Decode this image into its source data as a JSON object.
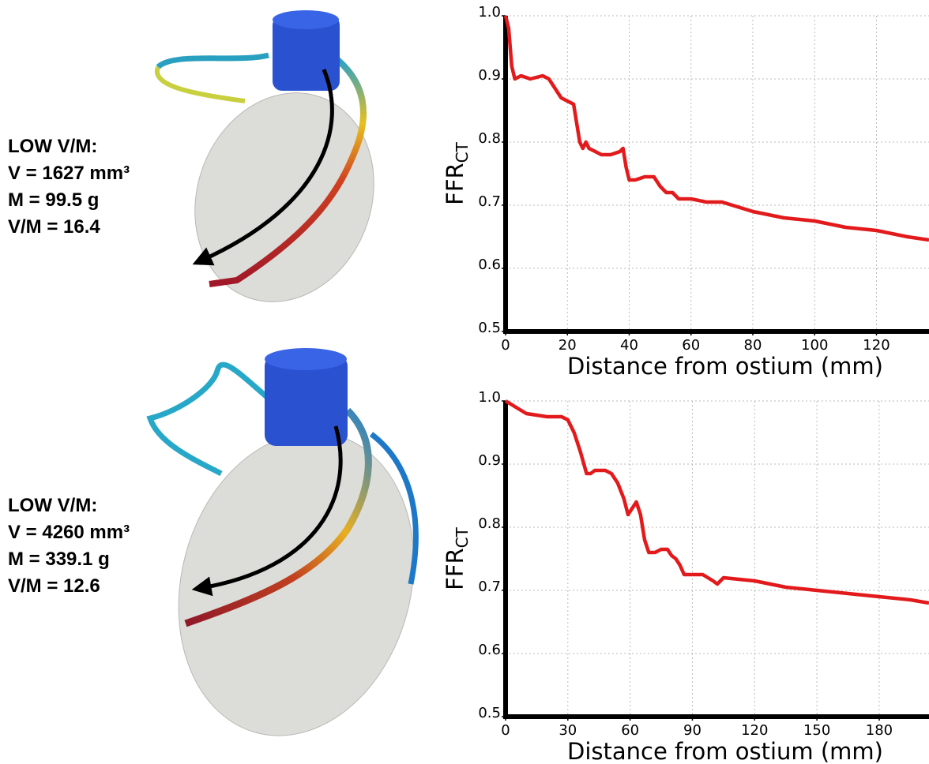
{
  "chart_data": [
    {
      "type": "line",
      "annotation_lines": [
        "LOW V/M:",
        "V = 1627 mm³",
        "M = 99.5 g",
        "V/M = 16.4"
      ],
      "xlabel": "Distance from ostium (mm)",
      "ylabel": "FFR",
      "ylabel_sub": "CT",
      "x": [
        0,
        1,
        2,
        3,
        5,
        8,
        12,
        14,
        16,
        18,
        20,
        22,
        23,
        24,
        25,
        26,
        27,
        29,
        31,
        34,
        37,
        38,
        39,
        40,
        42,
        45,
        48,
        50,
        52,
        54,
        56,
        60,
        65,
        70,
        80,
        90,
        100,
        110,
        120,
        130,
        137
      ],
      "series": [
        {
          "color": "#e31a1c",
          "values": [
            1.0,
            0.98,
            0.92,
            0.9,
            0.905,
            0.9,
            0.905,
            0.9,
            0.885,
            0.87,
            0.865,
            0.86,
            0.83,
            0.8,
            0.79,
            0.8,
            0.79,
            0.785,
            0.78,
            0.78,
            0.785,
            0.79,
            0.76,
            0.74,
            0.74,
            0.745,
            0.745,
            0.73,
            0.72,
            0.72,
            0.71,
            0.71,
            0.705,
            0.705,
            0.69,
            0.68,
            0.675,
            0.665,
            0.66,
            0.65,
            0.645
          ]
        }
      ],
      "xlim": [
        0,
        137
      ],
      "ylim": [
        0.5,
        1.0
      ],
      "xticks": [
        0,
        20,
        40,
        60,
        80,
        100,
        120
      ],
      "yticks": [
        0.5,
        0.6,
        0.7,
        0.8,
        0.9,
        {
          "value": 1,
          "label": "1.0"
        }
      ],
      "grid": true
    },
    {
      "type": "line",
      "annotation_lines": [
        "LOW V/M:",
        "V = 4260 mm³",
        "M = 339.1 g",
        "V/M = 12.6"
      ],
      "xlabel": "Distance from ostium (mm)",
      "ylabel": "FFR",
      "ylabel_sub": "CT",
      "x": [
        0,
        5,
        10,
        20,
        27,
        30,
        33,
        36,
        39,
        41,
        43,
        48,
        51,
        54,
        57,
        59,
        61,
        63,
        65,
        67,
        69,
        72,
        75,
        78,
        80,
        82,
        84,
        86,
        90,
        95,
        100,
        102,
        105,
        120,
        135,
        150,
        165,
        180,
        195,
        204
      ],
      "series": [
        {
          "color": "#e31a1c",
          "values": [
            1.0,
            0.99,
            0.98,
            0.975,
            0.975,
            0.97,
            0.95,
            0.92,
            0.885,
            0.885,
            0.89,
            0.89,
            0.885,
            0.87,
            0.845,
            0.82,
            0.83,
            0.84,
            0.82,
            0.78,
            0.76,
            0.76,
            0.765,
            0.765,
            0.755,
            0.75,
            0.74,
            0.725,
            0.725,
            0.725,
            0.715,
            0.71,
            0.72,
            0.715,
            0.705,
            0.7,
            0.695,
            0.69,
            0.685,
            0.68
          ]
        }
      ],
      "xlim": [
        0,
        204
      ],
      "ylim": [
        0.5,
        1.0
      ],
      "xticks": [
        0,
        30,
        60,
        90,
        120,
        150,
        180
      ],
      "yticks": [
        0.5,
        0.6,
        0.7,
        0.8,
        0.9,
        {
          "value": 1,
          "label": "1.0"
        }
      ],
      "grid": true
    }
  ]
}
